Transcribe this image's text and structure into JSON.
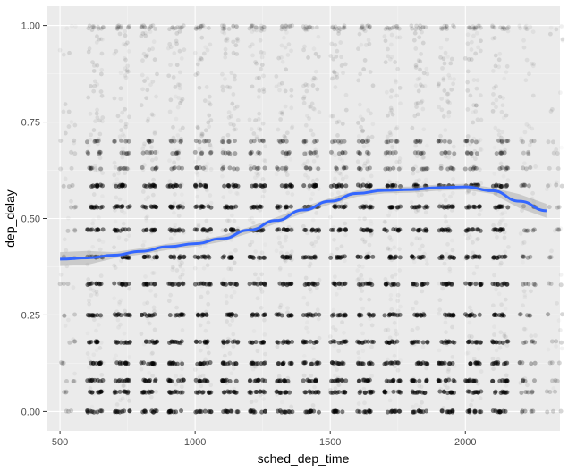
{
  "chart_data": {
    "type": "scatter",
    "title": "",
    "xlabel": "sched_dep_time",
    "ylabel": "dep_delay",
    "xlim": [
      450,
      2350
    ],
    "ylim": [
      -0.05,
      1.05
    ],
    "x_ticks": [
      500,
      1000,
      1500,
      2000
    ],
    "y_ticks": [
      0.0,
      0.25,
      0.5,
      0.75,
      1.0
    ],
    "x_tick_labels": [
      "500",
      "1000",
      "1500",
      "2000"
    ],
    "y_tick_labels": [
      "0.00",
      "0.25",
      "0.50",
      "0.75",
      "1.00"
    ],
    "grid": true,
    "background": "#ebebeb",
    "point_color": "#000000",
    "point_alpha": "low (overplotted)",
    "x_hour_columns": [
      500,
      600,
      700,
      800,
      900,
      1000,
      1100,
      1200,
      1300,
      1400,
      1500,
      1600,
      1700,
      1800,
      1900,
      2000,
      2100,
      2200,
      2300
    ],
    "dense_y_bands": [
      0.0,
      0.05,
      0.08,
      0.125,
      0.18,
      0.25,
      0.33,
      0.4,
      0.47,
      0.53,
      0.585,
      0.63,
      0.67,
      0.7
    ],
    "series": [
      {
        "type": "smooth",
        "color": "#3366ff",
        "ribbon_color": "#999999",
        "x": [
          500,
          600,
          700,
          800,
          900,
          1000,
          1100,
          1200,
          1300,
          1400,
          1500,
          1600,
          1700,
          1800,
          1900,
          2000,
          2100,
          2200,
          2300
        ],
        "y": [
          0.395,
          0.398,
          0.405,
          0.415,
          0.427,
          0.435,
          0.448,
          0.47,
          0.495,
          0.522,
          0.545,
          0.565,
          0.573,
          0.575,
          0.58,
          0.582,
          0.572,
          0.545,
          0.52
        ]
      }
    ]
  }
}
